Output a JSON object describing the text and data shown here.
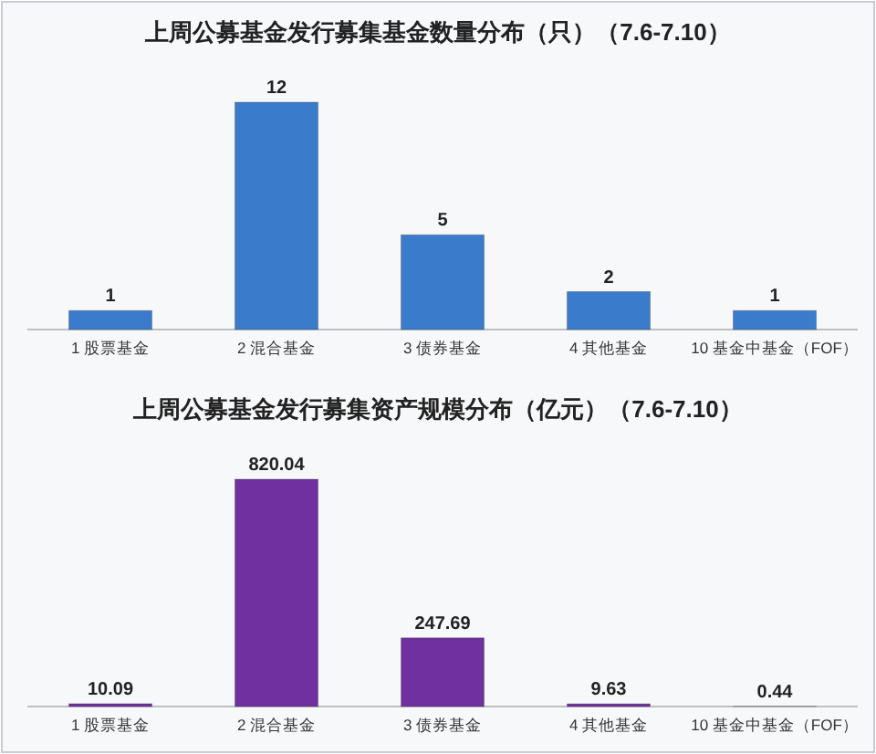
{
  "chart_data": [
    {
      "type": "bar",
      "title": "上周公募基金发行募集基金数量分布（只）（7.6-7.10）",
      "categories": [
        "1 股票基金",
        "2 混合基金",
        "3 债券基金",
        "4 其他基金",
        "10 基金中基金（FOF）"
      ],
      "values": [
        1,
        12,
        5,
        2,
        1
      ],
      "color": "#3b7bcc",
      "data_labels": true
    },
    {
      "type": "bar",
      "title": "上周公募基金发行募集资产规模分布（亿元）（7.6-7.10）",
      "categories": [
        "1 股票基金",
        "2 混合基金",
        "3 债券基金",
        "4 其他基金",
        "10 基金中基金（FOF）"
      ],
      "values": [
        10.09,
        820.04,
        247.69,
        9.63,
        0.44
      ],
      "color": "#7030a0",
      "data_labels": true
    }
  ]
}
